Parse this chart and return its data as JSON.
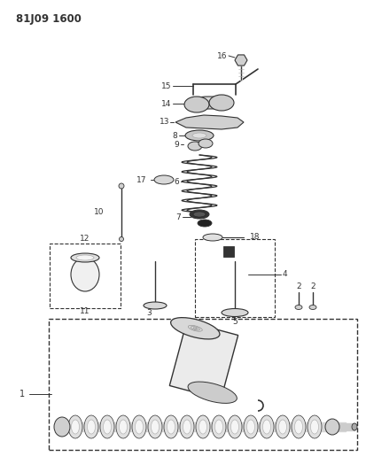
{
  "title": "81J09 1600",
  "bg_color": "#ffffff",
  "fig_width": 4.13,
  "fig_height": 5.33,
  "dpi": 100,
  "lc": "#333333",
  "gray_light": "#e8e8e8",
  "gray_mid": "#cccccc",
  "gray_dark": "#999999"
}
